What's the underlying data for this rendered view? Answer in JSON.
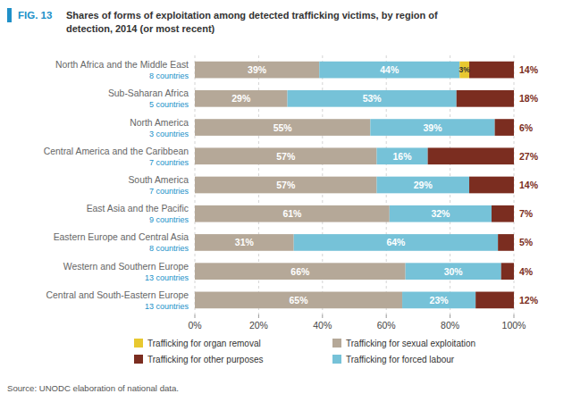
{
  "chart_data": {
    "type": "bar",
    "orientation": "horizontal",
    "stacked": true,
    "title": "Shares of forms of exploitation among detected trafficking victims, by region of\ndetection, 2014 (or most recent)",
    "annotations": [
      "FIG. 13",
      "Source: UNODC elaboration of national data."
    ],
    "categories": [
      "North Africa and the Middle East",
      "Sub-Saharan Africa",
      "North America",
      "Central America and the Caribbean",
      "South America",
      "East Asia and the Pacific",
      "Eastern Europe and Central Asia",
      "Western and Southern Europe",
      "Central and South-Eastern Europe"
    ],
    "category_notes": [
      "8 countries",
      "5 countries",
      "3 countries",
      "7 countries",
      "7 countries",
      "9 countries",
      "8 countries",
      "13 countries",
      "13 countries"
    ],
    "series": [
      {
        "name": "Trafficking for sexual exploitation",
        "color": "#b5a898",
        "values": [
          39,
          29,
          55,
          57,
          57,
          61,
          31,
          66,
          65
        ],
        "value_labels": [
          "39%",
          "29%",
          "55%",
          "57%",
          "57%",
          "61%",
          "31%",
          "66%",
          "65%"
        ]
      },
      {
        "name": "Trafficking for forced labour",
        "color": "#76c2d8",
        "values": [
          44,
          53,
          39,
          16,
          29,
          32,
          64,
          30,
          23
        ],
        "value_labels": [
          "44%",
          "53%",
          "39%",
          "16%",
          "29%",
          "32%",
          "64%",
          "30%",
          "23%"
        ]
      },
      {
        "name": "Trafficking for organ removal",
        "color": "#e8c830",
        "values": [
          3,
          0,
          0,
          0,
          0,
          0,
          0,
          0,
          0
        ],
        "value_labels": [
          "3%",
          null,
          null,
          null,
          null,
          null,
          null,
          null,
          null
        ]
      },
      {
        "name": "Trafficking for other purposes",
        "color": "#7b2d20",
        "values": [
          14,
          18,
          6,
          27,
          14,
          7,
          5,
          4,
          12
        ],
        "value_labels": [
          "14%",
          "18%",
          "6%",
          "27%",
          "14%",
          "7%",
          "5%",
          "4%",
          "12%"
        ]
      }
    ],
    "xlim": [
      0,
      100
    ],
    "xticks": [
      {
        "value": 0,
        "label": "0%"
      },
      {
        "value": 20,
        "label": "20%"
      },
      {
        "value": 40,
        "label": "40%"
      },
      {
        "value": 60,
        "label": "60%"
      },
      {
        "value": 80,
        "label": "80%"
      },
      {
        "value": 100,
        "label": "100%"
      }
    ],
    "grid": true,
    "legend": "bottom",
    "data_labels": true
  }
}
